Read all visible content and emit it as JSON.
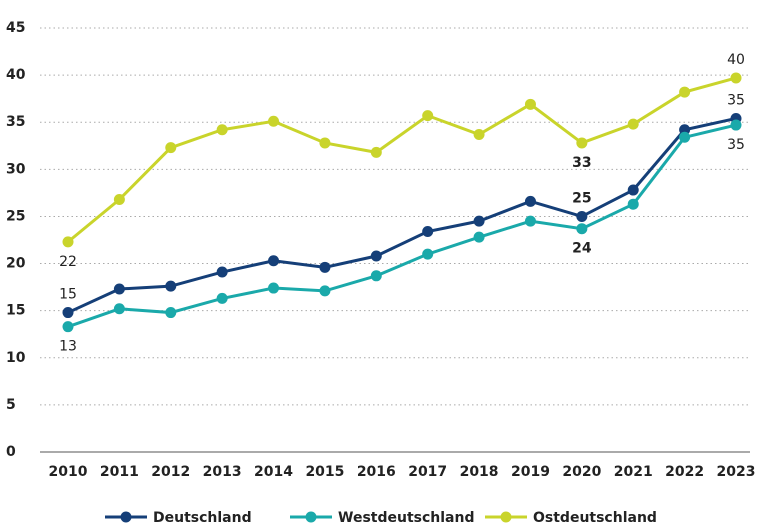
{
  "chart_data": {
    "type": "line",
    "categories": [
      "2010",
      "2011",
      "2012",
      "2013",
      "2014",
      "2015",
      "2016",
      "2017",
      "2018",
      "2019",
      "2020",
      "2021",
      "2022",
      "2023"
    ],
    "series": [
      {
        "name": "Deutschland",
        "color": "#153f78",
        "values": [
          14.8,
          17.3,
          17.6,
          19.1,
          20.3,
          19.6,
          20.8,
          23.4,
          24.5,
          26.6,
          25.0,
          27.8,
          34.2,
          35.4
        ],
        "value_labels": [
          "15",
          null,
          null,
          null,
          null,
          null,
          null,
          null,
          null,
          null,
          "25",
          null,
          null,
          "35"
        ]
      },
      {
        "name": "Westdeutschland",
        "color": "#1aa9aa",
        "values": [
          13.3,
          15.2,
          14.8,
          16.3,
          17.4,
          17.1,
          18.7,
          21.0,
          22.8,
          24.5,
          23.7,
          26.3,
          33.4,
          34.7
        ],
        "value_labels": [
          "13",
          null,
          null,
          null,
          null,
          null,
          null,
          null,
          null,
          null,
          "24",
          null,
          null,
          "35"
        ]
      },
      {
        "name": "Ostdeutschland",
        "color": "#c9d42b",
        "values": [
          22.3,
          26.8,
          32.3,
          34.2,
          35.1,
          32.8,
          31.8,
          35.7,
          33.7,
          36.9,
          32.8,
          34.8,
          38.2,
          39.7
        ],
        "value_labels": [
          "22",
          null,
          null,
          null,
          null,
          null,
          null,
          null,
          null,
          null,
          "33",
          null,
          null,
          "40"
        ]
      }
    ],
    "ylim": [
      0,
      45
    ],
    "yticks": [
      0,
      5,
      10,
      15,
      20,
      25,
      30,
      35,
      40,
      45
    ],
    "grid": true,
    "legend": "bottom"
  }
}
